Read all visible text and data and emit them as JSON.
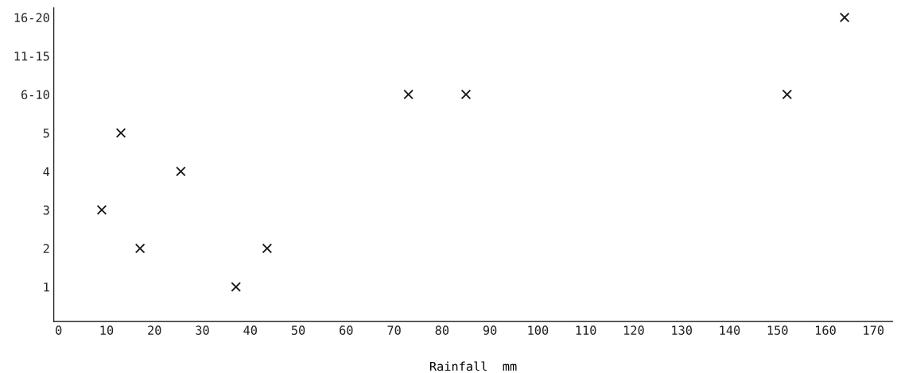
{
  "chart_data": {
    "type": "scatter",
    "xlabel": "Rainfall  mm",
    "x": [
      9,
      13,
      17,
      25.5,
      37,
      43.5,
      73,
      85,
      152,
      164
    ],
    "series": [
      {
        "color": "#1a1a1a",
        "values": [
          3,
          5,
          2,
          4,
          1,
          2,
          6,
          6,
          6,
          8
        ]
      }
    ],
    "marker": "cross",
    "grid": false,
    "xlim": [
      -1,
      174
    ],
    "xticks": [
      0,
      10,
      20,
      30,
      40,
      50,
      60,
      70,
      80,
      90,
      100,
      110,
      120,
      130,
      140,
      150,
      160,
      170
    ],
    "ylim": [
      0.1,
      8.25
    ],
    "yticks": [
      1,
      2,
      3,
      4,
      5,
      {
        "value": 6,
        "label": "6-10"
      },
      {
        "value": 7,
        "label": "11-15"
      },
      {
        "value": 8,
        "label": "16-20"
      }
    ]
  }
}
